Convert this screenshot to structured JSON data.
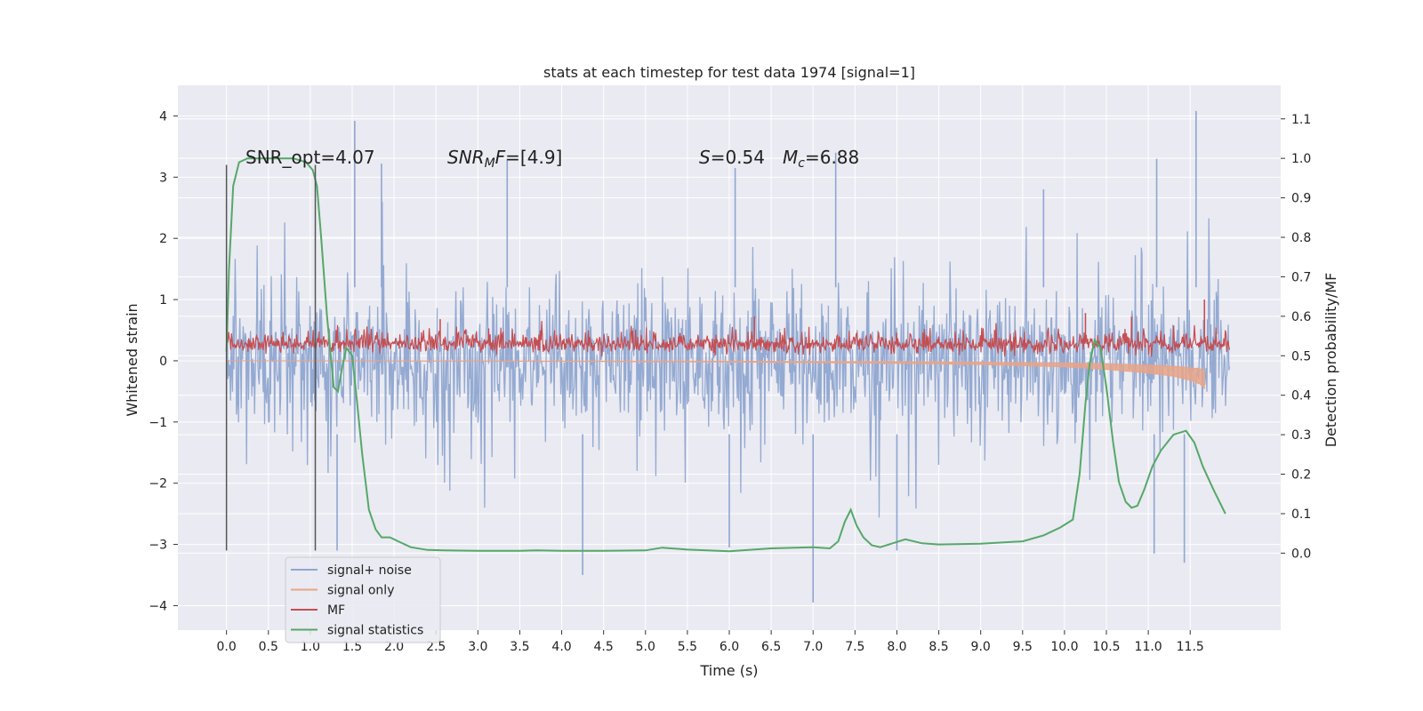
{
  "chart_data": {
    "type": "line",
    "title": "stats at each timestep for test data 1974 [signal=1]",
    "xlabel": "Time (s)",
    "ylabel": "Whitened strain",
    "y2label": "Detection probability/MF",
    "xlim": [
      -0.58,
      12.58
    ],
    "ylim": [
      -4.4,
      4.5
    ],
    "y2lim": [
      -0.195,
      1.185
    ],
    "grid": true,
    "legend_loc": "lower left",
    "xticks": [
      "0.0",
      "0.5",
      "1.0",
      "1.5",
      "2.0",
      "2.5",
      "3.0",
      "3.5",
      "4.0",
      "4.5",
      "5.0",
      "5.5",
      "6.0",
      "6.5",
      "7.0",
      "7.5",
      "8.0",
      "8.5",
      "9.0",
      "9.5",
      "10.0",
      "10.5",
      "11.0",
      "11.5"
    ],
    "yticks": [
      "4",
      "3",
      "2",
      "1",
      "0",
      "−1",
      "−2",
      "−3",
      "−4"
    ],
    "y2ticks": [
      "1.1",
      "1.0",
      "0.9",
      "0.8",
      "0.7",
      "0.6",
      "0.5",
      "0.4",
      "0.3",
      "0.2",
      "0.1",
      "0.0"
    ],
    "annotations": {
      "snr_opt": "SNR_opt=4.07",
      "snr_mf_label": "SNR",
      "snr_mf_sub": "M",
      "snr_mf_rest": "F=[4.9]",
      "s_label": "S",
      "s_value": "=0.54",
      "mc_label": "M",
      "mc_sub": "c",
      "mc_value": "=6.88"
    },
    "vlines": [
      0.0,
      1.06
    ],
    "vline_range": [
      -3.1,
      3.2
    ],
    "legend": [
      "signal+ noise",
      "signal only",
      "MF",
      "signal statistics"
    ],
    "colors": {
      "signal_noise": "#8fa6d0",
      "signal_only": "#e8a488",
      "mf": "#c44e52",
      "stats": "#55a868",
      "vline": "#555555",
      "background": "#eaeaf2"
    },
    "series": [
      {
        "name": "signal statistics",
        "axis": "right",
        "x": [
          0.0,
          0.03,
          0.08,
          0.15,
          0.25,
          0.4,
          0.6,
          0.8,
          0.95,
          1.03,
          1.08,
          1.13,
          1.2,
          1.28,
          1.33,
          1.38,
          1.43,
          1.5,
          1.55,
          1.62,
          1.7,
          1.78,
          1.85,
          1.95,
          2.05,
          2.2,
          2.4,
          2.6,
          3.0,
          3.5,
          3.7,
          4.0,
          4.5,
          5.0,
          5.2,
          5.5,
          6.0,
          6.5,
          7.0,
          7.2,
          7.3,
          7.38,
          7.45,
          7.52,
          7.6,
          7.7,
          7.8,
          7.95,
          8.1,
          8.3,
          8.5,
          9.0,
          9.5,
          9.75,
          9.95,
          10.1,
          10.18,
          10.25,
          10.3,
          10.36,
          10.43,
          10.5,
          10.58,
          10.65,
          10.73,
          10.8,
          10.87,
          10.95,
          11.05,
          11.15,
          11.3,
          11.45,
          11.55,
          11.65,
          11.78,
          11.92
        ],
        "y": [
          0.51,
          0.72,
          0.93,
          0.99,
          1.0,
          1.0,
          1.0,
          1.0,
          0.99,
          0.97,
          0.93,
          0.8,
          0.6,
          0.42,
          0.41,
          0.47,
          0.52,
          0.5,
          0.4,
          0.25,
          0.11,
          0.06,
          0.04,
          0.04,
          0.03,
          0.015,
          0.008,
          0.007,
          0.006,
          0.006,
          0.007,
          0.006,
          0.006,
          0.007,
          0.014,
          0.009,
          0.005,
          0.012,
          0.015,
          0.012,
          0.03,
          0.08,
          0.11,
          0.07,
          0.04,
          0.02,
          0.015,
          0.025,
          0.035,
          0.025,
          0.022,
          0.024,
          0.03,
          0.045,
          0.065,
          0.085,
          0.2,
          0.38,
          0.48,
          0.54,
          0.52,
          0.42,
          0.28,
          0.18,
          0.13,
          0.115,
          0.12,
          0.16,
          0.22,
          0.26,
          0.3,
          0.31,
          0.28,
          0.22,
          0.16,
          0.1
        ]
      },
      {
        "name": "signal only",
        "axis": "left",
        "x": [
          0.0,
          2.0,
          4.0,
          6.0,
          8.0,
          9.0,
          10.0,
          10.5,
          11.0,
          11.3,
          11.5,
          11.62,
          11.67
        ],
        "y": [
          0.0,
          -0.005,
          -0.01,
          -0.02,
          -0.04,
          -0.06,
          -0.1,
          -0.14,
          -0.2,
          -0.25,
          -0.32,
          -0.38,
          -0.45
        ]
      },
      {
        "name": "MF",
        "axis": "left",
        "band": [
          0.0,
          0.6
        ],
        "peaks": [
          {
            "x": 11.67,
            "y": 1.0
          },
          {
            "x": 10.25,
            "y": 0.78
          },
          {
            "x": 6.3,
            "y": 0.72
          },
          {
            "x": 2.55,
            "y": 0.68
          },
          {
            "x": 10.8,
            "y": 0.72
          }
        ]
      },
      {
        "name": "signal+ noise",
        "axis": "left",
        "band": [
          -1.4,
          1.3
        ],
        "range_shown": [
          -2.3,
          2.5
        ],
        "peaks": [
          {
            "x": 1.53,
            "y": 3.92
          },
          {
            "x": 1.85,
            "y": 3.22
          },
          {
            "x": 3.35,
            "y": 3.3
          },
          {
            "x": 6.07,
            "y": 3.15
          },
          {
            "x": 7.27,
            "y": 3.4
          },
          {
            "x": 11.57,
            "y": 4.08
          },
          {
            "x": 11.1,
            "y": 3.3
          },
          {
            "x": 9.75,
            "y": 2.8
          },
          {
            "x": 7.0,
            "y": -3.95
          },
          {
            "x": 4.25,
            "y": -3.5
          },
          {
            "x": 11.43,
            "y": -3.3
          },
          {
            "x": 11.07,
            "y": -3.15
          },
          {
            "x": 1.32,
            "y": -3.1
          },
          {
            "x": 6.0,
            "y": -3.05
          },
          {
            "x": 8.0,
            "y": -3.1
          }
        ]
      }
    ]
  }
}
